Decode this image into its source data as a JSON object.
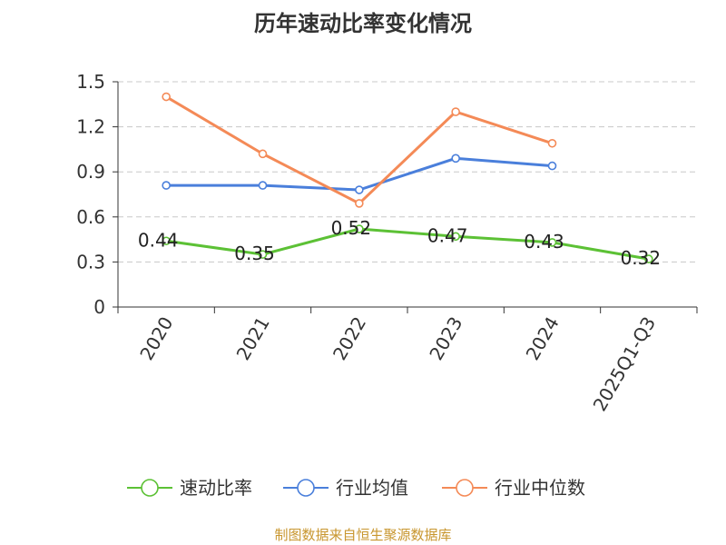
{
  "chart_data": {
    "type": "line",
    "title": "历年速动比率变化情况",
    "categories": [
      "2020",
      "2021",
      "2022",
      "2023",
      "2024",
      "2025Q1-Q3"
    ],
    "ylim": [
      0,
      1.5
    ],
    "yticks": [
      "0",
      "0.3",
      "0.6",
      "0.9",
      "1.2",
      "1.5"
    ],
    "grid": true,
    "legend_position": "bottom",
    "series": [
      {
        "name": "速动比率",
        "color": "#5cc135",
        "values": [
          0.44,
          0.35,
          0.52,
          0.47,
          0.43,
          0.32
        ],
        "labels": [
          "0.44",
          "0.35",
          "0.52",
          "0.47",
          "0.43",
          "0.32"
        ]
      },
      {
        "name": "行业均值",
        "color": "#4a7fdb",
        "values": [
          0.81,
          0.81,
          0.78,
          0.99,
          0.94,
          null
        ]
      },
      {
        "name": "行业中位数",
        "color": "#f48a57",
        "values": [
          1.4,
          1.02,
          0.69,
          1.3,
          1.09,
          null
        ]
      }
    ]
  },
  "footer": {
    "source": "制图数据来自恒生聚源数据库"
  }
}
